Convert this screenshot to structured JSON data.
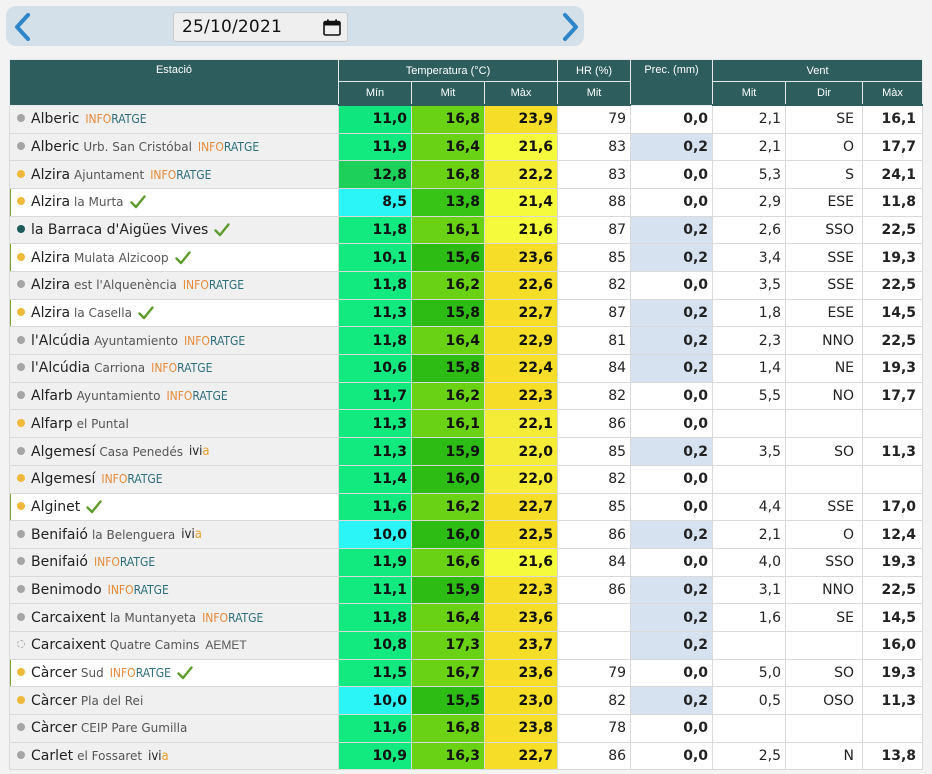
{
  "date": "25/10/2021",
  "headers": {
    "station": "Estació",
    "temperature": "Temperatura (°C)",
    "humidity": "HR (%)",
    "precipitation": "Prec. (mm)",
    "wind": "Vent",
    "min": "Mín",
    "mean": "Mit",
    "max": "Màx",
    "hr_mean": "Mit",
    "wind_mean": "Mit",
    "wind_dir": "Dir",
    "wind_max": "Màx"
  },
  "tags": {
    "info_a": "INFO",
    "info_b": "RATGE",
    "ivia_a": "ivi",
    "ivia_b": "a",
    "aemet": "AEMET"
  },
  "colors": {
    "dot_gray": "#a5a5a5",
    "dot_orange": "#f0b93b",
    "dot_teal": "#1d5c5c",
    "check_green": "#5d9c2b"
  },
  "rows": [
    {
      "name": "Alberic",
      "loc": "",
      "source": "inforatge",
      "check": false,
      "dot": "gray",
      "hl": false,
      "tmin": "11,0",
      "tmit": "16,8",
      "tmax": "23,9",
      "cmin": "#0fe67d",
      "cmit": "#6ad214",
      "cmax": "#f6de28",
      "hr": "79",
      "prec": "0,0",
      "rain": false,
      "wmit": "2,1",
      "wdir": "SE",
      "wmax": "16,1"
    },
    {
      "name": "Alberic",
      "loc": "Urb. San Cristóbal",
      "source": "inforatge",
      "check": false,
      "dot": "gray",
      "hl": false,
      "tmin": "11,9",
      "tmit": "16,4",
      "tmax": "21,6",
      "cmin": "#12ea80",
      "cmit": "#6ad214",
      "cmax": "#f5fa3c",
      "hr": "83",
      "prec": "0,2",
      "rain": true,
      "wmit": "2,1",
      "wdir": "O",
      "wmax": "17,7"
    },
    {
      "name": "Alzira",
      "loc": "Ajuntament",
      "source": "inforatge",
      "check": false,
      "dot": "orange",
      "hl": false,
      "tmin": "12,8",
      "tmit": "16,8",
      "tmax": "22,2",
      "cmin": "#1dd05a",
      "cmit": "#6ad214",
      "cmax": "#f4ec36",
      "hr": "83",
      "prec": "0,0",
      "rain": false,
      "wmit": "5,3",
      "wdir": "S",
      "wmax": "24,1"
    },
    {
      "name": "Alzira",
      "loc": "la Murta",
      "source": "",
      "check": true,
      "dot": "orange",
      "hl": true,
      "tmin": "8,5",
      "tmit": "13,8",
      "tmax": "21,4",
      "cmin": "#2cf5f7",
      "cmit": "#38c416",
      "cmax": "#f5fa3c",
      "hr": "88",
      "prec": "0,0",
      "rain": false,
      "wmit": "2,9",
      "wdir": "ESE",
      "wmax": "11,8"
    },
    {
      "name": "la Barraca d'Aigües Vives",
      "loc": "",
      "source": "",
      "check": true,
      "dot": "teal",
      "hl": false,
      "tmin": "11,8",
      "tmit": "16,1",
      "tmax": "21,6",
      "cmin": "#12ea80",
      "cmit": "#6ad214",
      "cmax": "#f5fa3c",
      "hr": "87",
      "prec": "0,2",
      "rain": true,
      "wmit": "2,6",
      "wdir": "SSO",
      "wmax": "22,5"
    },
    {
      "name": "Alzira",
      "loc": "Mulata Alzicoop",
      "source": "",
      "check": true,
      "dot": "orange",
      "hl": true,
      "tmin": "10,1",
      "tmit": "15,6",
      "tmax": "23,6",
      "cmin": "#12ea80",
      "cmit": "#2cbc14",
      "cmax": "#f6de28",
      "hr": "85",
      "prec": "0,2",
      "rain": true,
      "wmit": "3,4",
      "wdir": "SSE",
      "wmax": "19,3"
    },
    {
      "name": "Alzira",
      "loc": "est l'Alquenència",
      "source": "inforatge",
      "check": false,
      "dot": "gray",
      "hl": false,
      "tmin": "11,8",
      "tmit": "16,2",
      "tmax": "22,6",
      "cmin": "#12ea80",
      "cmit": "#6ad214",
      "cmax": "#f6de28",
      "hr": "82",
      "prec": "0,0",
      "rain": false,
      "wmit": "3,5",
      "wdir": "SSE",
      "wmax": "22,5"
    },
    {
      "name": "Alzira",
      "loc": "la Casella",
      "source": "",
      "check": true,
      "dot": "orange",
      "hl": true,
      "tmin": "11,3",
      "tmit": "15,8",
      "tmax": "22,7",
      "cmin": "#12ea80",
      "cmit": "#2cbc14",
      "cmax": "#f6de28",
      "hr": "87",
      "prec": "0,2",
      "rain": true,
      "wmit": "1,8",
      "wdir": "ESE",
      "wmax": "14,5"
    },
    {
      "name": "l'Alcúdia",
      "loc": "Ayuntamiento",
      "source": "inforatge",
      "check": false,
      "dot": "gray",
      "hl": false,
      "tmin": "11,8",
      "tmit": "16,4",
      "tmax": "22,9",
      "cmin": "#12ea80",
      "cmit": "#6ad214",
      "cmax": "#f6de28",
      "hr": "81",
      "prec": "0,2",
      "rain": true,
      "wmit": "2,3",
      "wdir": "NNO",
      "wmax": "22,5"
    },
    {
      "name": "l'Alcúdia",
      "loc": "Carriona",
      "source": "inforatge",
      "check": false,
      "dot": "gray",
      "hl": false,
      "tmin": "10,6",
      "tmit": "15,8",
      "tmax": "22,4",
      "cmin": "#12ea80",
      "cmit": "#2cbc14",
      "cmax": "#f6de28",
      "hr": "84",
      "prec": "0,2",
      "rain": true,
      "wmit": "1,4",
      "wdir": "NE",
      "wmax": "19,3"
    },
    {
      "name": "Alfarb",
      "loc": "Ayuntamiento",
      "source": "inforatge",
      "check": false,
      "dot": "gray",
      "hl": false,
      "tmin": "11,7",
      "tmit": "16,2",
      "tmax": "22,3",
      "cmin": "#12ea80",
      "cmit": "#6ad214",
      "cmax": "#f6de28",
      "hr": "82",
      "prec": "0,0",
      "rain": false,
      "wmit": "5,5",
      "wdir": "NO",
      "wmax": "17,7"
    },
    {
      "name": "Alfarp",
      "loc": "el Puntal",
      "source": "",
      "check": false,
      "dot": "orange",
      "hl": false,
      "tmin": "11,3",
      "tmit": "16,1",
      "tmax": "22,1",
      "cmin": "#12ea80",
      "cmit": "#6ad214",
      "cmax": "#f4ec36",
      "hr": "86",
      "prec": "0,0",
      "rain": false,
      "wmit": "",
      "wdir": "",
      "wmax": ""
    },
    {
      "name": "Algemesí",
      "loc": "Casa Penedés",
      "source": "ivia",
      "check": false,
      "dot": "gray",
      "hl": false,
      "tmin": "11,3",
      "tmit": "15,9",
      "tmax": "22,0",
      "cmin": "#12ea80",
      "cmit": "#2cbc14",
      "cmax": "#f4ec36",
      "hr": "85",
      "prec": "0,2",
      "rain": true,
      "wmit": "3,5",
      "wdir": "SO",
      "wmax": "11,3"
    },
    {
      "name": "Algemesí",
      "loc": "",
      "source": "inforatge",
      "check": false,
      "dot": "orange",
      "hl": false,
      "tmin": "11,4",
      "tmit": "16,0",
      "tmax": "22,0",
      "cmin": "#12ea80",
      "cmit": "#2cbc14",
      "cmax": "#f4ec36",
      "hr": "82",
      "prec": "0,0",
      "rain": false,
      "wmit": "",
      "wdir": "",
      "wmax": ""
    },
    {
      "name": "Alginet",
      "loc": "",
      "source": "",
      "check": true,
      "dot": "orange",
      "hl": true,
      "tmin": "11,6",
      "tmit": "16,2",
      "tmax": "22,7",
      "cmin": "#12ea80",
      "cmit": "#6ad214",
      "cmax": "#f6de28",
      "hr": "85",
      "prec": "0,0",
      "rain": false,
      "wmit": "4,4",
      "wdir": "SSE",
      "wmax": "17,0"
    },
    {
      "name": "Benifaió",
      "loc": "la Belenguera",
      "source": "ivia",
      "check": false,
      "dot": "gray",
      "hl": false,
      "tmin": "10,0",
      "tmit": "16,0",
      "tmax": "22,5",
      "cmin": "#2cf5f7",
      "cmit": "#2cbc14",
      "cmax": "#f6de28",
      "hr": "86",
      "prec": "0,2",
      "rain": true,
      "wmit": "2,1",
      "wdir": "O",
      "wmax": "12,4"
    },
    {
      "name": "Benifaió",
      "loc": "",
      "source": "inforatge",
      "check": false,
      "dot": "gray",
      "hl": false,
      "tmin": "11,9",
      "tmit": "16,6",
      "tmax": "21,6",
      "cmin": "#12ea80",
      "cmit": "#6ad214",
      "cmax": "#f5fa3c",
      "hr": "84",
      "prec": "0,0",
      "rain": false,
      "wmit": "4,0",
      "wdir": "SSO",
      "wmax": "19,3"
    },
    {
      "name": "Benimodo",
      "loc": "",
      "source": "inforatge",
      "check": false,
      "dot": "gray",
      "hl": false,
      "tmin": "11,1",
      "tmit": "15,9",
      "tmax": "22,3",
      "cmin": "#12ea80",
      "cmit": "#2cbc14",
      "cmax": "#f6de28",
      "hr": "86",
      "prec": "0,2",
      "rain": true,
      "wmit": "3,1",
      "wdir": "NNO",
      "wmax": "22,5"
    },
    {
      "name": "Carcaixent",
      "loc": "la Muntanyeta",
      "source": "inforatge",
      "check": false,
      "dot": "gray",
      "hl": false,
      "tmin": "11,8",
      "tmit": "16,4",
      "tmax": "23,6",
      "cmin": "#12ea80",
      "cmit": "#6ad214",
      "cmax": "#f6de28",
      "hr": "",
      "prec": "0,2",
      "rain": true,
      "wmit": "1,6",
      "wdir": "SE",
      "wmax": "14,5"
    },
    {
      "name": "Carcaixent",
      "loc": "Quatre Camins",
      "source": "aemet",
      "check": false,
      "dot": "dashed",
      "hl": false,
      "tmin": "10,8",
      "tmit": "17,3",
      "tmax": "23,7",
      "cmin": "#12ea80",
      "cmit": "#6ad214",
      "cmax": "#f6de28",
      "hr": "",
      "prec": "0,2",
      "rain": true,
      "wmit": "",
      "wdir": "",
      "wmax": "16,0"
    },
    {
      "name": "Càrcer",
      "loc": "Sud",
      "source": "inforatge",
      "check": true,
      "dot": "orange",
      "hl": true,
      "tmin": "11,5",
      "tmit": "16,7",
      "tmax": "23,6",
      "cmin": "#12ea80",
      "cmit": "#6ad214",
      "cmax": "#f6de28",
      "hr": "79",
      "prec": "0,0",
      "rain": false,
      "wmit": "5,0",
      "wdir": "SO",
      "wmax": "19,3"
    },
    {
      "name": "Càrcer",
      "loc": "Pla del Rei",
      "source": "",
      "check": false,
      "dot": "orange",
      "hl": false,
      "tmin": "10,0",
      "tmit": "15,5",
      "tmax": "23,0",
      "cmin": "#2cf5f7",
      "cmit": "#2cbc14",
      "cmax": "#f6de28",
      "hr": "82",
      "prec": "0,2",
      "rain": true,
      "wmit": "0,5",
      "wdir": "OSO",
      "wmax": "11,3"
    },
    {
      "name": "Càrcer",
      "loc": "CEIP Pare Gumilla",
      "source": "",
      "check": false,
      "dot": "gray",
      "hl": false,
      "tmin": "11,6",
      "tmit": "16,8",
      "tmax": "23,8",
      "cmin": "#12ea80",
      "cmit": "#6ad214",
      "cmax": "#f6de28",
      "hr": "78",
      "prec": "0,0",
      "rain": false,
      "wmit": "",
      "wdir": "",
      "wmax": ""
    },
    {
      "name": "Carlet",
      "loc": "el Fossaret",
      "source": "ivia",
      "check": false,
      "dot": "gray",
      "hl": false,
      "tmin": "10,9",
      "tmit": "16,3",
      "tmax": "22,7",
      "cmin": "#12ea80",
      "cmit": "#6ad214",
      "cmax": "#f6de28",
      "hr": "86",
      "prec": "0,0",
      "rain": false,
      "wmit": "2,5",
      "wdir": "N",
      "wmax": "13,8"
    }
  ]
}
